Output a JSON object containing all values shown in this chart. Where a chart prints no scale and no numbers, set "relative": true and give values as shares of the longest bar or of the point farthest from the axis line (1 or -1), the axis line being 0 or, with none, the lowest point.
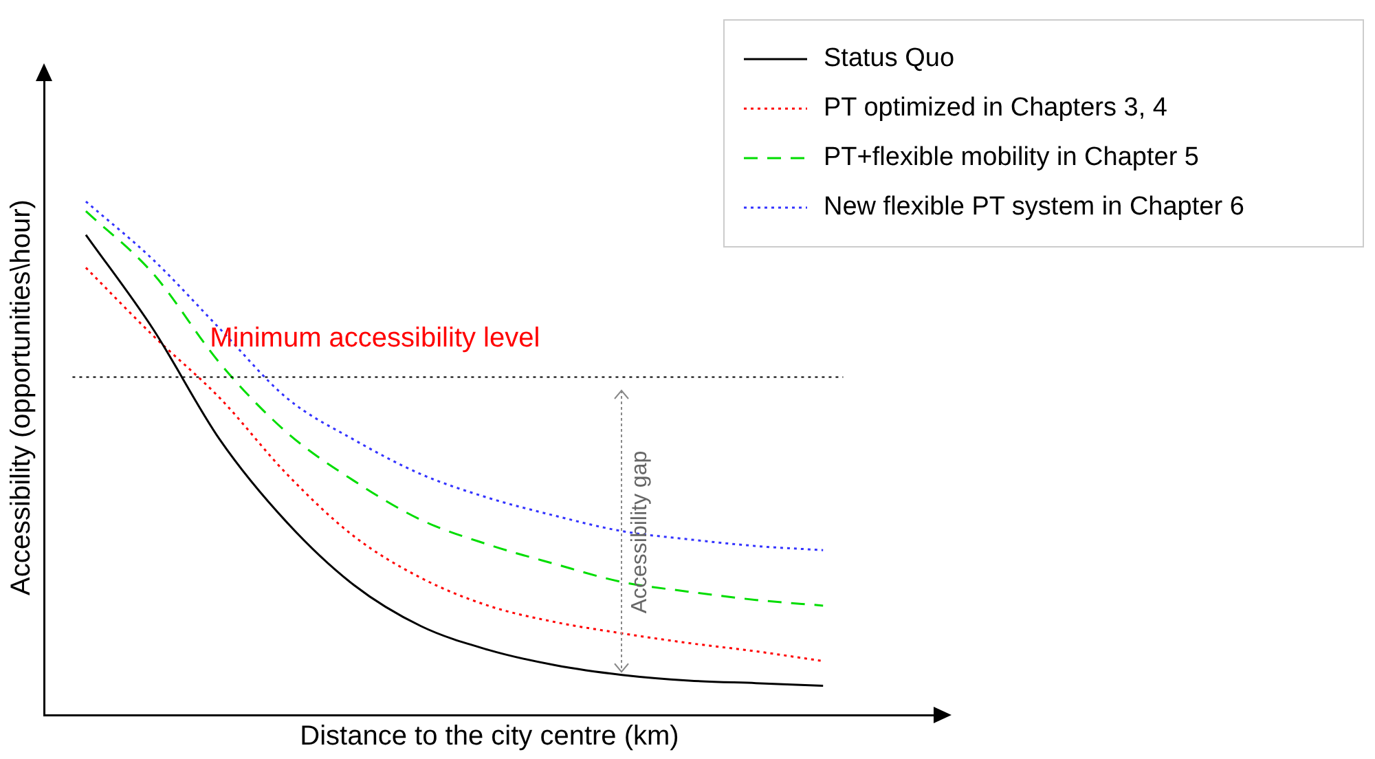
{
  "chart_data": {
    "type": "line",
    "relative": true,
    "xlabel": "Distance to the city centre (km)",
    "ylabel": "Accessibility (opportunities\\hour)",
    "categories": [
      null,
      null,
      null,
      null,
      null,
      null,
      null,
      null,
      null,
      null,
      null,
      null
    ],
    "series": [
      {
        "name": "Status Quo",
        "color": "#000000",
        "line_style": "solid",
        "values": [
          0.935,
          0.752,
          0.536,
          0.375,
          0.253,
          0.173,
          0.127,
          0.097,
          0.078,
          0.067,
          0.062,
          0.057
        ]
      },
      {
        "name": "PT optimized in Chapters 3, 4",
        "color": "#ff0000",
        "line_style": "dotted",
        "values": [
          0.871,
          0.739,
          0.617,
          0.469,
          0.348,
          0.267,
          0.213,
          0.181,
          0.159,
          0.14,
          0.124,
          0.105
        ]
      },
      {
        "name": "PT+flexible mobility in Chapter 5",
        "color": "#00dd00",
        "line_style": "dashed",
        "values": [
          0.981,
          0.86,
          0.685,
          0.55,
          0.456,
          0.38,
          0.332,
          0.294,
          0.259,
          0.24,
          0.224,
          0.213
        ]
      },
      {
        "name": "New flexible PT system in Chapter 6",
        "color": "#3333ff",
        "line_style": "dotted",
        "values": [
          1,
          0.887,
          0.752,
          0.617,
          0.536,
          0.469,
          0.423,
          0.388,
          0.358,
          0.342,
          0.329,
          0.321
        ]
      }
    ],
    "ref_lines": [
      {
        "axis": "y",
        "value": 0.658,
        "label": "Minimum accessibility level",
        "line_style": "dotted"
      }
    ],
    "annotations": [
      "Accessibility gap"
    ],
    "legend": "top right",
    "grid": false,
    "marker": "none"
  }
}
